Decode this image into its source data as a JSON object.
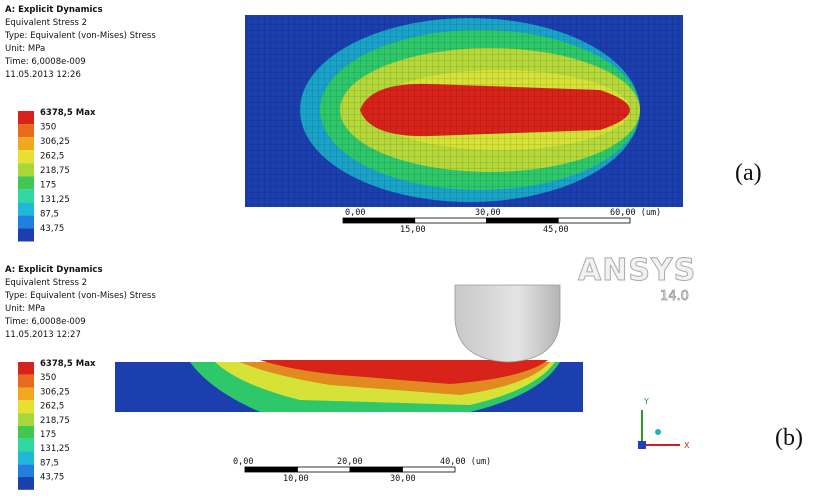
{
  "panels": [
    {
      "label": "(a)",
      "header": {
        "title": "A: Explicit Dynamics",
        "lines": [
          "Equivalent Stress 2",
          "Type: Equivalent (von-Mises) Stress",
          "Unit: MPa",
          "Time: 6,0008e-009",
          "11.05.2013 12:26"
        ]
      },
      "legend": [
        "6378,5 Max",
        "350",
        "306,25",
        "262,5",
        "218,75",
        "175",
        "131,25",
        "87,5",
        "43,75"
      ],
      "scale_top": [
        "0,00",
        "30,00",
        "60,00 (um)"
      ],
      "scale_bottom": [
        "15,00",
        "45,00"
      ]
    },
    {
      "label": "(b)",
      "header": {
        "title": "A: Explicit Dynamics",
        "lines": [
          "Equivalent Stress 2",
          "Type: Equivalent (von-Mises) Stress",
          "Unit: MPa",
          "Time: 6,0008e-009",
          "11.05.2013 12:27"
        ]
      },
      "legend": [
        "6378,5 Max",
        "350",
        "306,25",
        "262,5",
        "218,75",
        "175",
        "131,25",
        "87,5",
        "43,75"
      ],
      "scale_top": [
        "0,00",
        "20,00",
        "40,00 (um)"
      ],
      "scale_bottom": [
        "10,00",
        "30,00"
      ]
    }
  ],
  "logo": {
    "name": "ANSYS",
    "version": "14.0"
  },
  "triad": {
    "y": "Y",
    "x": "X"
  }
}
